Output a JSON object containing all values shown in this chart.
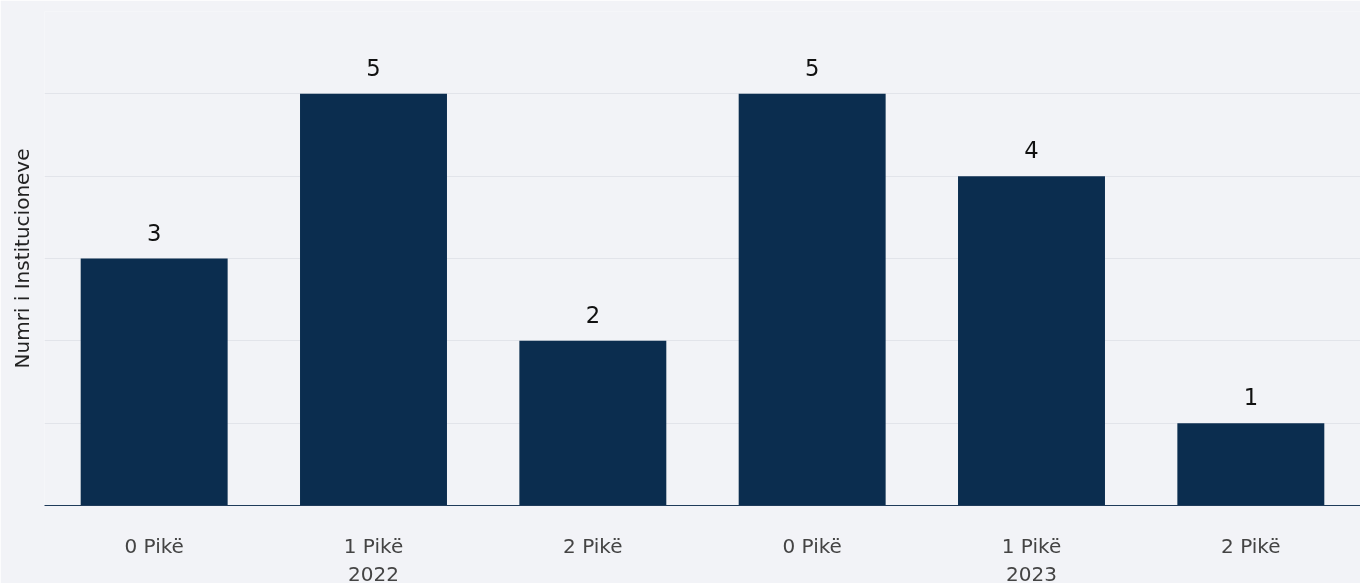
{
  "chart_data": {
    "type": "bar",
    "ylabel": "Numri i Institucioneve",
    "categories": [
      "0 Pikë",
      "1 Pikë",
      "2 Pikë",
      "0 Pikë",
      "1 Pikë",
      "2 Pikë"
    ],
    "values": [
      3,
      5,
      2,
      5,
      4,
      1
    ],
    "color": "#0b2d4f",
    "data_labels": true,
    "annotations": [
      "2022",
      "2023"
    ],
    "ylim": [
      0,
      6
    ],
    "yticks": [
      {
        "value": 0,
        "label": null
      },
      {
        "value": 1,
        "label": null
      },
      {
        "value": 2,
        "label": null
      },
      {
        "value": 3,
        "label": null
      },
      {
        "value": 4,
        "label": null
      },
      {
        "value": 5,
        "label": null
      },
      {
        "value": 6,
        "label": null
      }
    ],
    "grid": "y",
    "tick_labels": "x"
  }
}
